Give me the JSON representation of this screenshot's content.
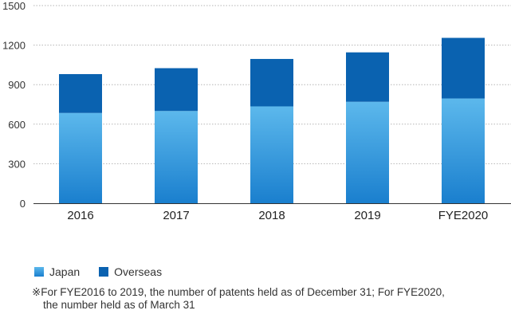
{
  "chart_data": {
    "type": "bar",
    "stacked": true,
    "categories": [
      "2016",
      "2017",
      "2018",
      "2019",
      "FYE2020"
    ],
    "series": [
      {
        "name": "Japan",
        "values": [
          685,
          700,
          735,
          770,
          795
        ]
      },
      {
        "name": "Overseas",
        "values": [
          295,
          325,
          360,
          375,
          460
        ]
      }
    ],
    "ylim": [
      0,
      1500
    ],
    "yticks": [
      "0",
      "300",
      "600",
      "900",
      "1200",
      "1500"
    ],
    "grid": "dotted horizontal",
    "colors": {
      "japan_top": "#5cb8ec",
      "japan_bottom": "#1a7fce",
      "overseas": "#0a62b0",
      "grid": "#b5b5b5",
      "axis": "#333333"
    }
  },
  "legend": {
    "japan": "Japan",
    "overseas": "Overseas"
  },
  "note": {
    "line1": "※For FYE2016 to 2019, the number of patents held as of December 31; For FYE2020,",
    "line2": "the number held as of March 31"
  }
}
